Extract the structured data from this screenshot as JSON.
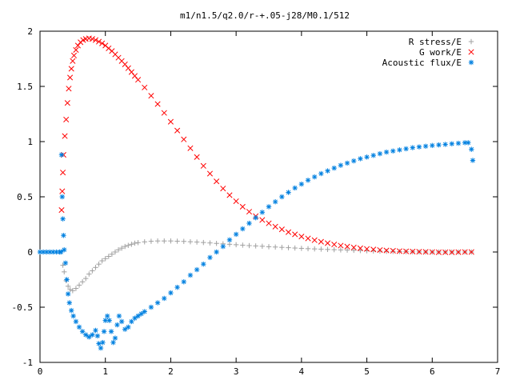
{
  "chart_data": {
    "type": "scatter",
    "title": "m1/n1.5/q2.0/r-+.05-j28/M0.1/512",
    "xlabel": "",
    "ylabel": "",
    "xlim": [
      0,
      7
    ],
    "ylim": [
      -1,
      2
    ],
    "xticks": [
      "0",
      "1",
      "2",
      "3",
      "4",
      "5",
      "6",
      "7"
    ],
    "yticks": [
      "-1",
      "-0.5",
      "0",
      "0.5",
      "1",
      "1.5",
      "2"
    ],
    "legend_position": "top-right",
    "grid": false,
    "series": [
      {
        "name": "R stress/E",
        "marker": "+",
        "color": "#a0a0a0",
        "points": [
          [
            0.35,
            -0.12
          ],
          [
            0.37,
            -0.18
          ],
          [
            0.4,
            -0.26
          ],
          [
            0.43,
            -0.31
          ],
          [
            0.46,
            -0.34
          ],
          [
            0.5,
            -0.35
          ],
          [
            0.55,
            -0.33
          ],
          [
            0.6,
            -0.3
          ],
          [
            0.65,
            -0.27
          ],
          [
            0.7,
            -0.24
          ],
          [
            0.75,
            -0.2
          ],
          [
            0.8,
            -0.17
          ],
          [
            0.85,
            -0.14
          ],
          [
            0.9,
            -0.11
          ],
          [
            0.95,
            -0.08
          ],
          [
            1.0,
            -0.06
          ],
          [
            1.05,
            -0.04
          ],
          [
            1.1,
            -0.02
          ],
          [
            1.15,
            0.0
          ],
          [
            1.2,
            0.02
          ],
          [
            1.25,
            0.035
          ],
          [
            1.3,
            0.05
          ],
          [
            1.35,
            0.06
          ],
          [
            1.4,
            0.07
          ],
          [
            1.45,
            0.08
          ],
          [
            1.5,
            0.085
          ],
          [
            1.6,
            0.092
          ],
          [
            1.7,
            0.097
          ],
          [
            1.8,
            0.1
          ],
          [
            1.9,
            0.1
          ],
          [
            2.0,
            0.1
          ],
          [
            2.1,
            0.098
          ],
          [
            2.2,
            0.096
          ],
          [
            2.3,
            0.093
          ],
          [
            2.4,
            0.09
          ],
          [
            2.5,
            0.086
          ],
          [
            2.6,
            0.082
          ],
          [
            2.7,
            0.078
          ],
          [
            2.8,
            0.074
          ],
          [
            2.9,
            0.07
          ],
          [
            3.0,
            0.066
          ],
          [
            3.1,
            0.062
          ],
          [
            3.2,
            0.058
          ],
          [
            3.3,
            0.055
          ],
          [
            3.4,
            0.052
          ],
          [
            3.5,
            0.048
          ],
          [
            3.6,
            0.045
          ],
          [
            3.7,
            0.042
          ],
          [
            3.8,
            0.039
          ],
          [
            3.9,
            0.036
          ],
          [
            4.0,
            0.033
          ],
          [
            4.1,
            0.03
          ],
          [
            4.2,
            0.028
          ],
          [
            4.3,
            0.026
          ],
          [
            4.4,
            0.023
          ],
          [
            4.5,
            0.021
          ],
          [
            4.6,
            0.019
          ],
          [
            4.7,
            0.017
          ],
          [
            4.8,
            0.015
          ],
          [
            4.9,
            0.013
          ],
          [
            5.0,
            0.011
          ],
          [
            5.1,
            0.009
          ],
          [
            5.2,
            0.008
          ],
          [
            5.3,
            0.006
          ],
          [
            5.4,
            0.005
          ],
          [
            5.5,
            0.004
          ],
          [
            5.6,
            0.003
          ],
          [
            5.7,
            0.002
          ],
          [
            5.8,
            0.001
          ],
          [
            5.9,
            0.0
          ],
          [
            6.0,
            0.0
          ],
          [
            6.1,
            0.0
          ],
          [
            6.2,
            0.0
          ],
          [
            6.3,
            0.0
          ],
          [
            6.4,
            0.0
          ],
          [
            6.5,
            0.0
          ],
          [
            6.6,
            0.0
          ]
        ]
      },
      {
        "name": "G work/E",
        "marker": "x",
        "color": "#ff0000",
        "points": [
          [
            0.33,
            0.38
          ],
          [
            0.34,
            0.55
          ],
          [
            0.35,
            0.72
          ],
          [
            0.36,
            0.88
          ],
          [
            0.38,
            1.05
          ],
          [
            0.4,
            1.2
          ],
          [
            0.42,
            1.35
          ],
          [
            0.44,
            1.48
          ],
          [
            0.46,
            1.58
          ],
          [
            0.48,
            1.66
          ],
          [
            0.5,
            1.73
          ],
          [
            0.52,
            1.78
          ],
          [
            0.55,
            1.83
          ],
          [
            0.58,
            1.87
          ],
          [
            0.62,
            1.9
          ],
          [
            0.66,
            1.92
          ],
          [
            0.7,
            1.93
          ],
          [
            0.75,
            1.935
          ],
          [
            0.8,
            1.93
          ],
          [
            0.85,
            1.92
          ],
          [
            0.9,
            1.905
          ],
          [
            0.95,
            1.89
          ],
          [
            1.0,
            1.87
          ],
          [
            1.05,
            1.845
          ],
          [
            1.1,
            1.82
          ],
          [
            1.15,
            1.79
          ],
          [
            1.2,
            1.76
          ],
          [
            1.25,
            1.73
          ],
          [
            1.3,
            1.7
          ],
          [
            1.35,
            1.665
          ],
          [
            1.4,
            1.63
          ],
          [
            1.45,
            1.595
          ],
          [
            1.5,
            1.56
          ],
          [
            1.6,
            1.49
          ],
          [
            1.7,
            1.415
          ],
          [
            1.8,
            1.34
          ],
          [
            1.9,
            1.26
          ],
          [
            2.0,
            1.18
          ],
          [
            2.1,
            1.1
          ],
          [
            2.2,
            1.02
          ],
          [
            2.3,
            0.94
          ],
          [
            2.4,
            0.86
          ],
          [
            2.5,
            0.78
          ],
          [
            2.6,
            0.71
          ],
          [
            2.7,
            0.64
          ],
          [
            2.8,
            0.575
          ],
          [
            2.9,
            0.515
          ],
          [
            3.0,
            0.46
          ],
          [
            3.1,
            0.41
          ],
          [
            3.2,
            0.365
          ],
          [
            3.3,
            0.325
          ],
          [
            3.4,
            0.29
          ],
          [
            3.5,
            0.26
          ],
          [
            3.6,
            0.23
          ],
          [
            3.7,
            0.205
          ],
          [
            3.8,
            0.18
          ],
          [
            3.9,
            0.16
          ],
          [
            4.0,
            0.14
          ],
          [
            4.1,
            0.123
          ],
          [
            4.2,
            0.107
          ],
          [
            4.3,
            0.093
          ],
          [
            4.4,
            0.08
          ],
          [
            4.5,
            0.068
          ],
          [
            4.6,
            0.058
          ],
          [
            4.7,
            0.049
          ],
          [
            4.8,
            0.041
          ],
          [
            4.9,
            0.034
          ],
          [
            5.0,
            0.028
          ],
          [
            5.1,
            0.023
          ],
          [
            5.2,
            0.018
          ],
          [
            5.3,
            0.014
          ],
          [
            5.4,
            0.011
          ],
          [
            5.5,
            0.008
          ],
          [
            5.6,
            0.006
          ],
          [
            5.7,
            0.004
          ],
          [
            5.8,
            0.002
          ],
          [
            5.9,
            0.001
          ],
          [
            6.0,
            0.0
          ],
          [
            6.1,
            -0.002
          ],
          [
            6.2,
            -0.002
          ],
          [
            6.3,
            -0.002
          ],
          [
            6.4,
            -0.001
          ],
          [
            6.5,
            0.0
          ],
          [
            6.6,
            0.0
          ]
        ]
      },
      {
        "name": "Acoustic flux/E",
        "marker": "*",
        "color": "#0080e0",
        "points": [
          [
            0.0,
            0.0
          ],
          [
            0.05,
            0.0
          ],
          [
            0.1,
            0.0
          ],
          [
            0.15,
            0.0
          ],
          [
            0.2,
            0.0
          ],
          [
            0.25,
            0.0
          ],
          [
            0.3,
            0.0
          ],
          [
            0.32,
            0.0
          ],
          [
            0.33,
            0.88
          ],
          [
            0.34,
            0.5
          ],
          [
            0.35,
            0.3
          ],
          [
            0.36,
            0.15
          ],
          [
            0.37,
            0.02
          ],
          [
            0.39,
            -0.1
          ],
          [
            0.41,
            -0.25
          ],
          [
            0.43,
            -0.38
          ],
          [
            0.45,
            -0.46
          ],
          [
            0.48,
            -0.53
          ],
          [
            0.51,
            -0.58
          ],
          [
            0.55,
            -0.63
          ],
          [
            0.6,
            -0.68
          ],
          [
            0.65,
            -0.72
          ],
          [
            0.7,
            -0.75
          ],
          [
            0.75,
            -0.77
          ],
          [
            0.8,
            -0.75
          ],
          [
            0.85,
            -0.71
          ],
          [
            0.88,
            -0.76
          ],
          [
            0.9,
            -0.83
          ],
          [
            0.93,
            -0.87
          ],
          [
            0.96,
            -0.82
          ],
          [
            0.98,
            -0.72
          ],
          [
            1.0,
            -0.62
          ],
          [
            1.03,
            -0.58
          ],
          [
            1.06,
            -0.62
          ],
          [
            1.09,
            -0.72
          ],
          [
            1.12,
            -0.82
          ],
          [
            1.15,
            -0.78
          ],
          [
            1.18,
            -0.66
          ],
          [
            1.21,
            -0.58
          ],
          [
            1.25,
            -0.63
          ],
          [
            1.3,
            -0.7
          ],
          [
            1.35,
            -0.68
          ],
          [
            1.4,
            -0.63
          ],
          [
            1.45,
            -0.6
          ],
          [
            1.5,
            -0.58
          ],
          [
            1.55,
            -0.56
          ],
          [
            1.6,
            -0.54
          ],
          [
            1.7,
            -0.5
          ],
          [
            1.8,
            -0.46
          ],
          [
            1.9,
            -0.42
          ],
          [
            2.0,
            -0.37
          ],
          [
            2.1,
            -0.32
          ],
          [
            2.2,
            -0.27
          ],
          [
            2.3,
            -0.21
          ],
          [
            2.4,
            -0.16
          ],
          [
            2.5,
            -0.11
          ],
          [
            2.6,
            -0.05
          ],
          [
            2.7,
            0.0
          ],
          [
            2.8,
            0.05
          ],
          [
            2.9,
            0.11
          ],
          [
            3.0,
            0.16
          ],
          [
            3.1,
            0.21
          ],
          [
            3.2,
            0.26
          ],
          [
            3.3,
            0.31
          ],
          [
            3.4,
            0.36
          ],
          [
            3.5,
            0.41
          ],
          [
            3.6,
            0.455
          ],
          [
            3.7,
            0.5
          ],
          [
            3.8,
            0.54
          ],
          [
            3.9,
            0.58
          ],
          [
            4.0,
            0.615
          ],
          [
            4.1,
            0.65
          ],
          [
            4.2,
            0.68
          ],
          [
            4.3,
            0.71
          ],
          [
            4.4,
            0.735
          ],
          [
            4.5,
            0.76
          ],
          [
            4.6,
            0.785
          ],
          [
            4.7,
            0.805
          ],
          [
            4.8,
            0.825
          ],
          [
            4.9,
            0.845
          ],
          [
            5.0,
            0.86
          ],
          [
            5.1,
            0.875
          ],
          [
            5.2,
            0.89
          ],
          [
            5.3,
            0.905
          ],
          [
            5.4,
            0.915
          ],
          [
            5.5,
            0.925
          ],
          [
            5.6,
            0.935
          ],
          [
            5.7,
            0.945
          ],
          [
            5.8,
            0.952
          ],
          [
            5.9,
            0.958
          ],
          [
            6.0,
            0.965
          ],
          [
            6.1,
            0.97
          ],
          [
            6.2,
            0.975
          ],
          [
            6.3,
            0.98
          ],
          [
            6.4,
            0.985
          ],
          [
            6.5,
            0.99
          ],
          [
            6.55,
            0.99
          ],
          [
            6.6,
            0.93
          ],
          [
            6.62,
            0.83
          ]
        ]
      }
    ]
  }
}
